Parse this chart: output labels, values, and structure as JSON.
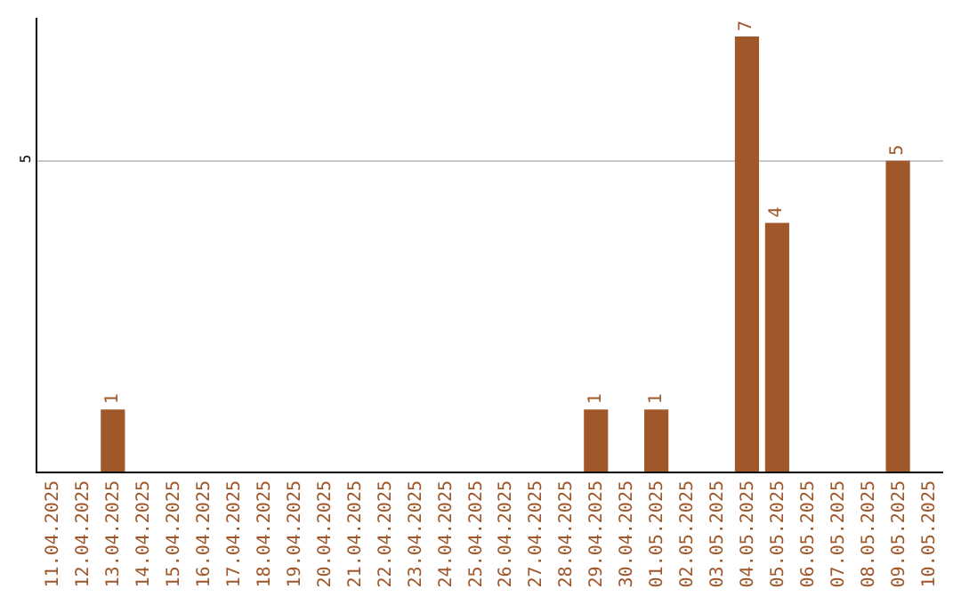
{
  "chart_data": {
    "type": "bar",
    "categories": [
      "11.04.2025",
      "12.04.2025",
      "13.04.2025",
      "14.04.2025",
      "15.04.2025",
      "16.04.2025",
      "17.04.2025",
      "18.04.2025",
      "19.04.2025",
      "20.04.2025",
      "21.04.2025",
      "22.04.2025",
      "23.04.2025",
      "24.04.2025",
      "25.04.2025",
      "26.04.2025",
      "27.04.2025",
      "28.04.2025",
      "29.04.2025",
      "30.04.2025",
      "01.05.2025",
      "02.05.2025",
      "03.05.2025",
      "04.05.2025",
      "05.05.2025",
      "06.05.2025",
      "07.05.2025",
      "08.05.2025",
      "09.05.2025",
      "10.05.2025"
    ],
    "values": [
      0,
      0,
      1,
      0,
      0,
      0,
      0,
      0,
      0,
      0,
      0,
      0,
      0,
      0,
      0,
      0,
      0,
      0,
      1,
      0,
      1,
      0,
      0,
      7,
      4,
      0,
      0,
      0,
      5,
      0
    ],
    "value_labels": [
      null,
      null,
      "1",
      null,
      null,
      null,
      null,
      null,
      null,
      null,
      null,
      null,
      null,
      null,
      null,
      null,
      null,
      null,
      "1",
      null,
      "1",
      null,
      null,
      "7",
      "4",
      null,
      null,
      null,
      "5",
      null
    ],
    "color": "#a0572a",
    "ylim": [
      0,
      7.3
    ],
    "yticks": [
      5
    ],
    "grid": "y",
    "legend": false
  }
}
